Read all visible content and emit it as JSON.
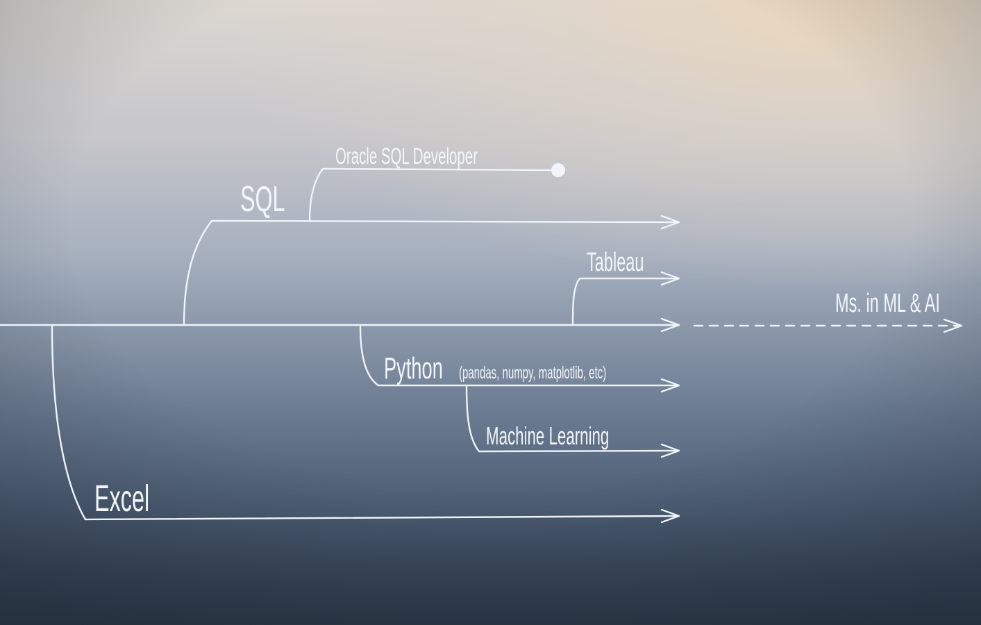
{
  "diagram": {
    "labels": {
      "sql": "SQL",
      "oracle": "Oracle SQL Developer",
      "tableau": "Tableau",
      "goal": "Ms. in ML & AI",
      "python": "Python",
      "python_libs": "(pandas, numpy, matplotlib, etc)",
      "ml": "Machine Learning",
      "excel": "Excel"
    }
  }
}
